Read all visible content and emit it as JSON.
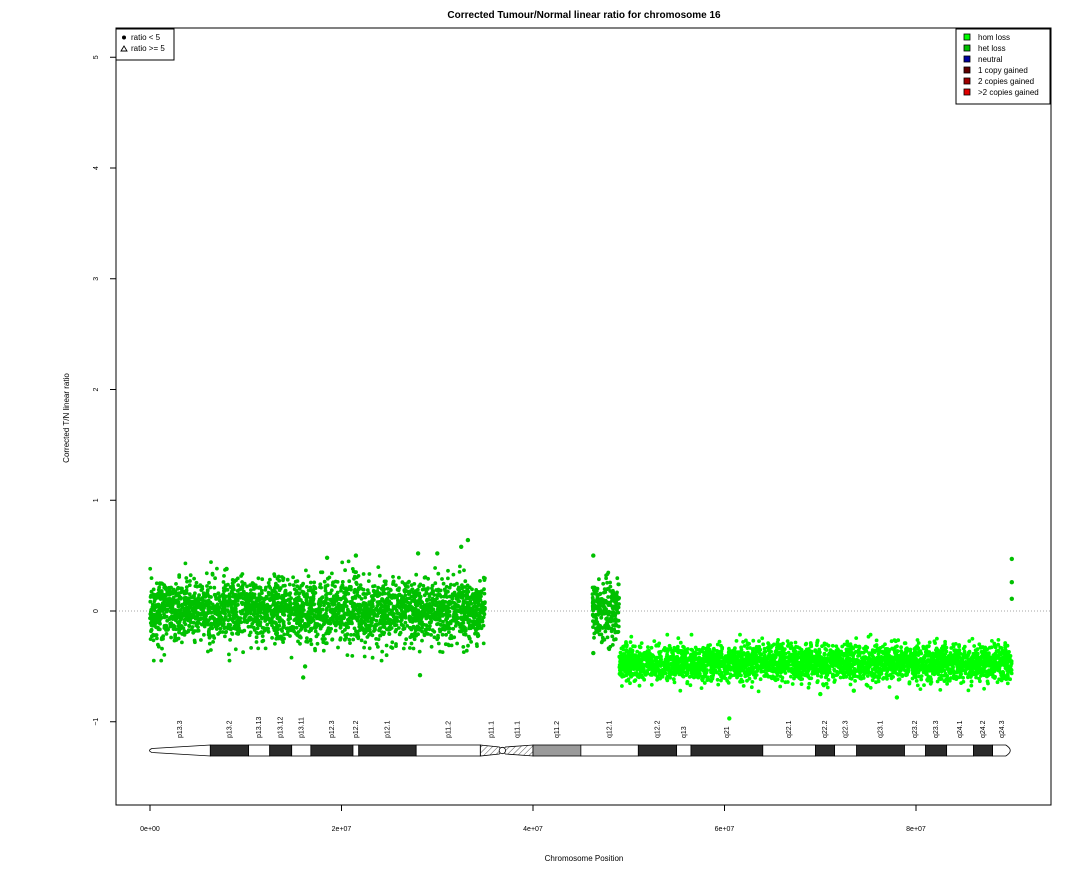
{
  "chart_data": {
    "type": "scatter",
    "title": "Corrected Tumour/Normal linear ratio for chromosome  16",
    "xlabel": "Chromosome Position",
    "ylabel": "Corrected T/N linear ratio",
    "xlim": [
      -4500000,
      94000000
    ],
    "ylim": [
      -1.75,
      5.3
    ],
    "x_ticks": [
      0,
      20000000,
      40000000,
      60000000,
      80000000
    ],
    "x_tick_labels": [
      "0e+00",
      "2e+07",
      "4e+07",
      "6e+07",
      "8e+07"
    ],
    "y_ticks": [
      -1,
      0,
      1,
      2,
      3,
      4,
      5
    ],
    "y_tick_labels": [
      "−1",
      "0",
      "1",
      "2",
      "3",
      "4",
      "5"
    ],
    "reference_line_y": 0,
    "shape_legend": {
      "placement": "top-left",
      "entries": [
        {
          "label": "ratio < 5",
          "symbol": "filled-circle"
        },
        {
          "label": "ratio >= 5",
          "symbol": "open-triangle"
        }
      ]
    },
    "state_legend": {
      "placement": "top-right",
      "entries": [
        {
          "label": "hom loss",
          "color": "#00ff00"
        },
        {
          "label": "het loss",
          "color": "#00c000"
        },
        {
          "label": "neutral",
          "color": "#0000a0"
        },
        {
          "label": "1 copy gained",
          "color": "#600000"
        },
        {
          "label": "2 copies gained",
          "color": "#a00000"
        },
        {
          "label": ">2 copies gained",
          "color": "#e00000"
        }
      ]
    },
    "series": [
      {
        "label": "het loss",
        "color": "#00c000",
        "x_range": [
          0,
          35000000
        ],
        "mean": 0.0,
        "spread": 0.14
      },
      {
        "label": "het loss",
        "color": "#00c000",
        "x_range": [
          46200000,
          49000000
        ],
        "mean": 0.0,
        "spread": 0.14
      },
      {
        "label": "hom loss",
        "color": "#00ff00",
        "x_range": [
          49000000,
          90000000
        ],
        "mean": -0.47,
        "spread": 0.08
      }
    ],
    "outliers": [
      {
        "x": 8000000,
        "y": 0.38,
        "color": "#00c000"
      },
      {
        "x": 16000000,
        "y": -0.6,
        "color": "#00c000"
      },
      {
        "x": 16200000,
        "y": -0.5,
        "color": "#00c000"
      },
      {
        "x": 18500000,
        "y": 0.48,
        "color": "#00c000"
      },
      {
        "x": 21500000,
        "y": 0.5,
        "color": "#00c000"
      },
      {
        "x": 28000000,
        "y": 0.52,
        "color": "#00c000"
      },
      {
        "x": 28200000,
        "y": -0.58,
        "color": "#00c000"
      },
      {
        "x": 30000000,
        "y": 0.52,
        "color": "#00c000"
      },
      {
        "x": 32500000,
        "y": 0.58,
        "color": "#00c000"
      },
      {
        "x": 33200000,
        "y": 0.64,
        "color": "#00c000"
      },
      {
        "x": 46300000,
        "y": 0.5,
        "color": "#00c000"
      },
      {
        "x": 46300000,
        "y": -0.38,
        "color": "#00c000"
      },
      {
        "x": 60500000,
        "y": -0.97,
        "color": "#00ff00"
      },
      {
        "x": 70000000,
        "y": -0.75,
        "color": "#00ff00"
      },
      {
        "x": 73500000,
        "y": -0.72,
        "color": "#00ff00"
      },
      {
        "x": 78000000,
        "y": -0.78,
        "color": "#00ff00"
      },
      {
        "x": 90000000,
        "y": 0.47,
        "color": "#00c000"
      },
      {
        "x": 90000000,
        "y": 0.26,
        "color": "#00c000"
      },
      {
        "x": 90000000,
        "y": 0.11,
        "color": "#00c000"
      }
    ],
    "ideogram": {
      "length": 90000000,
      "centromere": 36800000,
      "bands": [
        {
          "name": "p13.3",
          "start": 0,
          "end": 6300000,
          "stain": "gneg"
        },
        {
          "name": "p13.2",
          "start": 6300000,
          "end": 10300000,
          "stain": "gpos"
        },
        {
          "name": "p13.13",
          "start": 10300000,
          "end": 12500000,
          "stain": "gneg"
        },
        {
          "name": "p13.12",
          "start": 12500000,
          "end": 14800000,
          "stain": "gpos"
        },
        {
          "name": "p13.11",
          "start": 14800000,
          "end": 16800000,
          "stain": "gneg"
        },
        {
          "name": "p12.3",
          "start": 16800000,
          "end": 21200000,
          "stain": "gpos"
        },
        {
          "name": "p12.2",
          "start": 21200000,
          "end": 21800000,
          "stain": "gneg"
        },
        {
          "name": "p12.1",
          "start": 21800000,
          "end": 27800000,
          "stain": "gpos"
        },
        {
          "name": "p11.2",
          "start": 27800000,
          "end": 34500000,
          "stain": "gneg"
        },
        {
          "name": "p11.1",
          "start": 34500000,
          "end": 36800000,
          "stain": "acen"
        },
        {
          "name": "q11.1",
          "start": 36800000,
          "end": 40000000,
          "stain": "acen"
        },
        {
          "name": "q11.2",
          "start": 40000000,
          "end": 45000000,
          "stain": "gvar"
        },
        {
          "name": "q12.1",
          "start": 45000000,
          "end": 51000000,
          "stain": "gneg"
        },
        {
          "name": "q12.2",
          "start": 51000000,
          "end": 55000000,
          "stain": "gpos"
        },
        {
          "name": "q13",
          "start": 55000000,
          "end": 56500000,
          "stain": "gneg"
        },
        {
          "name": "q21",
          "start": 56500000,
          "end": 64000000,
          "stain": "gpos"
        },
        {
          "name": "q22.1",
          "start": 64000000,
          "end": 69500000,
          "stain": "gneg"
        },
        {
          "name": "q22.2",
          "start": 69500000,
          "end": 71500000,
          "stain": "gpos"
        },
        {
          "name": "q22.3",
          "start": 71500000,
          "end": 73800000,
          "stain": "gneg"
        },
        {
          "name": "q23.1",
          "start": 73800000,
          "end": 78800000,
          "stain": "gpos"
        },
        {
          "name": "q23.2",
          "start": 78800000,
          "end": 81000000,
          "stain": "gneg"
        },
        {
          "name": "q23.3",
          "start": 81000000,
          "end": 83200000,
          "stain": "gpos"
        },
        {
          "name": "q24.1",
          "start": 83200000,
          "end": 86000000,
          "stain": "gneg"
        },
        {
          "name": "q24.2",
          "start": 86000000,
          "end": 88000000,
          "stain": "gpos"
        },
        {
          "name": "q24.3",
          "start": 88000000,
          "end": 90000000,
          "stain": "gneg"
        }
      ]
    }
  }
}
